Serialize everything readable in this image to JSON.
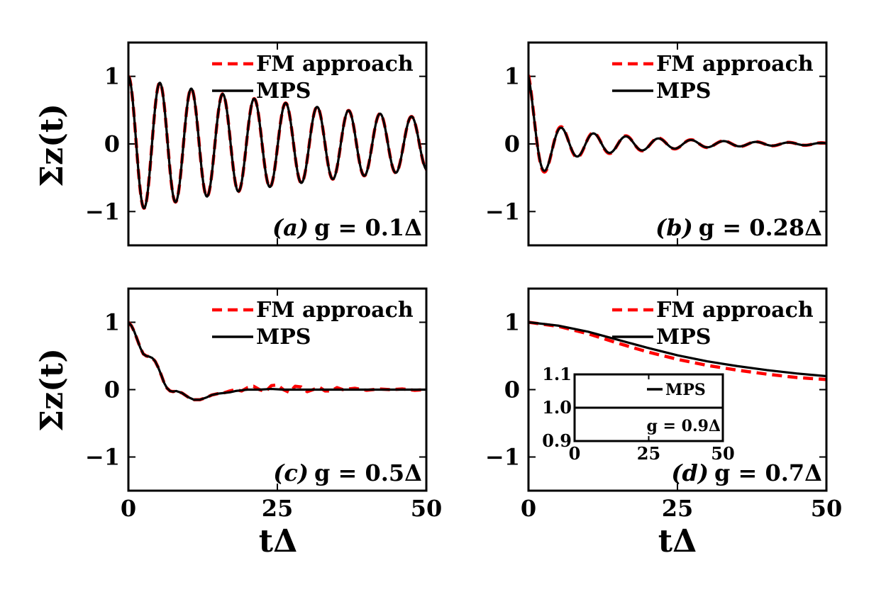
{
  "figure": {
    "ylabel": "Σz(t)",
    "xlabel": "tΔ"
  },
  "legend": {
    "fm": "FM approach",
    "mps": "MPS"
  },
  "colors": {
    "fm": "#ff0000",
    "mps": "#000000",
    "frame": "#000000"
  },
  "chart_data": [
    {
      "type": "line",
      "panel": "a",
      "label_letter": "(a)",
      "label_text": "g = 0.1Δ",
      "xlim": [
        0,
        50
      ],
      "ylim": [
        -1.5,
        1.5
      ],
      "xticks": [
        0,
        25,
        50
      ],
      "yticks": [
        -1,
        0,
        1
      ],
      "xticks_labeled": false,
      "legend_position": "top-right",
      "series": [
        {
          "name": "FM approach",
          "style": "dashed",
          "model": {
            "kind": "damped_cos",
            "c": 0.0,
            "a": 1.0,
            "gamma": 0.019,
            "omega": 1.19,
            "phi": 0.0
          }
        },
        {
          "name": "MPS",
          "style": "solid",
          "model": {
            "kind": "damped_cos",
            "c": 0.0,
            "a": 1.0,
            "gamma": 0.019,
            "omega": 1.19,
            "phi": 0.0
          }
        }
      ]
    },
    {
      "type": "line",
      "panel": "b",
      "label_letter": "(b)",
      "label_text": "g = 0.28Δ",
      "xlim": [
        0,
        50
      ],
      "ylim": [
        -1.5,
        1.5
      ],
      "xticks": [
        0,
        25,
        50
      ],
      "yticks": [
        -1,
        0,
        1
      ],
      "xticks_labeled": false,
      "legend_position": "top-right",
      "series": [
        {
          "name": "FM approach",
          "style": "dashed",
          "model": {
            "kind": "two_mode",
            "c": 0.0,
            "a1": 0.7,
            "g1": 0.55,
            "w1": 1.0,
            "a2": 0.32,
            "g2": 0.06,
            "w2": 1.15
          }
        },
        {
          "name": "MPS",
          "style": "solid",
          "model": {
            "kind": "two_mode",
            "c": 0.0,
            "a1": 0.7,
            "g1": 0.55,
            "w1": 1.0,
            "a2": 0.3,
            "g2": 0.06,
            "w2": 1.15
          }
        }
      ]
    },
    {
      "type": "line",
      "panel": "c",
      "label_letter": "(c)",
      "label_text": "g = 0.5Δ",
      "xlim": [
        0,
        50
      ],
      "ylim": [
        -1.5,
        1.5
      ],
      "xticks": [
        0,
        25,
        50
      ],
      "yticks": [
        -1,
        0,
        1
      ],
      "xticks_labeled": true,
      "legend_position": "top-right",
      "series": [
        {
          "name": "FM approach",
          "style": "dashed",
          "x": [
            0,
            0.5,
            1,
            1.5,
            2,
            2.5,
            3,
            3.5,
            4,
            4.5,
            5,
            5.5,
            6,
            6.5,
            7,
            7.5,
            8,
            9,
            10,
            11,
            12,
            13,
            14,
            15,
            16,
            17,
            18,
            19,
            20,
            21,
            22,
            23,
            24,
            25,
            26,
            27,
            28,
            29,
            30,
            31,
            32,
            33,
            34,
            35,
            36,
            38,
            40,
            42,
            44,
            46,
            48,
            50
          ],
          "y": [
            1.0,
            0.95,
            0.86,
            0.74,
            0.62,
            0.53,
            0.5,
            0.49,
            0.47,
            0.42,
            0.33,
            0.22,
            0.1,
            0.02,
            -0.02,
            -0.03,
            -0.02,
            -0.05,
            -0.11,
            -0.15,
            -0.15,
            -0.12,
            -0.08,
            -0.06,
            -0.05,
            -0.02,
            0.0,
            -0.02,
            0.03,
            0.05,
            0.0,
            -0.03,
            0.06,
            0.07,
            0.0,
            -0.04,
            0.05,
            0.04,
            -0.03,
            0.0,
            0.04,
            -0.02,
            -0.02,
            0.03,
            0.0,
            0.02,
            -0.01,
            0.01,
            0.0,
            0.01,
            -0.01,
            0.0
          ]
        },
        {
          "name": "MPS",
          "style": "solid",
          "x": [
            0,
            0.5,
            1,
            1.5,
            2,
            2.5,
            3,
            3.5,
            4,
            4.5,
            5,
            5.5,
            6,
            6.5,
            7,
            7.5,
            8,
            9,
            10,
            11,
            12,
            13,
            14,
            15,
            16,
            17,
            18,
            19,
            20,
            22,
            24,
            26,
            28,
            30,
            35,
            40,
            45,
            50
          ],
          "y": [
            1.0,
            0.95,
            0.86,
            0.74,
            0.62,
            0.53,
            0.5,
            0.49,
            0.47,
            0.42,
            0.33,
            0.22,
            0.1,
            0.02,
            -0.02,
            -0.03,
            -0.02,
            -0.05,
            -0.11,
            -0.15,
            -0.15,
            -0.12,
            -0.08,
            -0.06,
            -0.05,
            -0.04,
            -0.02,
            -0.01,
            0.0,
            0.0,
            0.01,
            0.0,
            0.0,
            0.0,
            0.0,
            0.0,
            0.0,
            0.0
          ]
        }
      ]
    },
    {
      "type": "line",
      "panel": "d",
      "label_letter": "(d)",
      "label_text": "g = 0.7Δ",
      "xlim": [
        0,
        50
      ],
      "ylim": [
        -1.5,
        1.5
      ],
      "xticks": [
        0,
        25,
        50
      ],
      "yticks": [
        -1,
        0,
        1
      ],
      "xticks_labeled": true,
      "legend_position": "top-right",
      "series": [
        {
          "name": "FM approach",
          "style": "dashed",
          "x": [
            0,
            5,
            10,
            15,
            20,
            25,
            30,
            35,
            40,
            45,
            50
          ],
          "y": [
            1.0,
            0.94,
            0.83,
            0.69,
            0.56,
            0.45,
            0.36,
            0.29,
            0.23,
            0.18,
            0.15
          ]
        },
        {
          "name": "MPS",
          "style": "solid",
          "x": [
            0,
            5,
            10,
            15,
            20,
            25,
            30,
            35,
            40,
            45,
            50
          ],
          "y": [
            1.0,
            0.95,
            0.86,
            0.74,
            0.62,
            0.51,
            0.42,
            0.35,
            0.29,
            0.24,
            0.2
          ]
        }
      ],
      "inset": {
        "xlim": [
          0,
          50
        ],
        "ylim": [
          0.9,
          1.1
        ],
        "xticks": [
          0,
          25,
          50
        ],
        "yticks": [
          0.9,
          1.0,
          1.1
        ],
        "ytick_labels": [
          "0.9",
          "1.0",
          "1.1"
        ],
        "legend": "MPS",
        "label_text": "g = 0.9Δ",
        "series": [
          {
            "name": "MPS",
            "style": "solid",
            "x": [
              0,
              50
            ],
            "y": [
              1.0,
              1.0
            ]
          }
        ]
      }
    }
  ]
}
